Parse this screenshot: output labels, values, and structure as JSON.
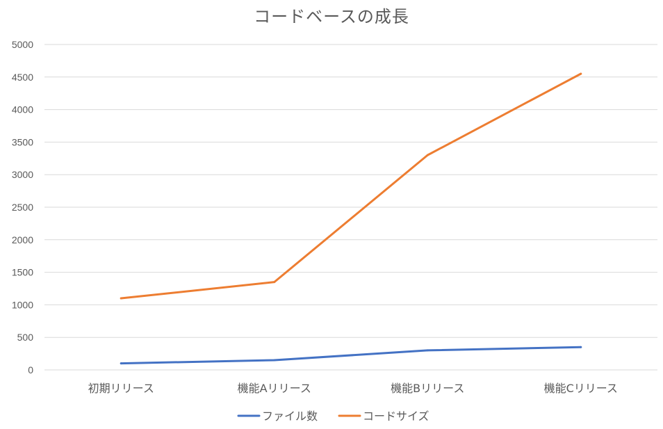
{
  "chart_data": {
    "type": "line",
    "title": "コードベースの成長",
    "xlabel": "",
    "ylabel": "",
    "categories": [
      "初期リリース",
      "機能Aリリース",
      "機能Bリリース",
      "機能Cリリース"
    ],
    "series": [
      {
        "name": "ファイル数",
        "values": [
          100,
          150,
          300,
          350
        ],
        "color": "#4472C4"
      },
      {
        "name": "コードサイズ",
        "values": [
          1100,
          1350,
          3300,
          4550
        ],
        "color": "#ED7D31"
      }
    ],
    "ylim": [
      0,
      5000
    ],
    "yticks": [
      0,
      500,
      1000,
      1500,
      2000,
      2500,
      3000,
      3500,
      4000,
      4500,
      5000
    ],
    "grid": true,
    "gridColor": "#D9D9D9",
    "legend": "bottom"
  }
}
